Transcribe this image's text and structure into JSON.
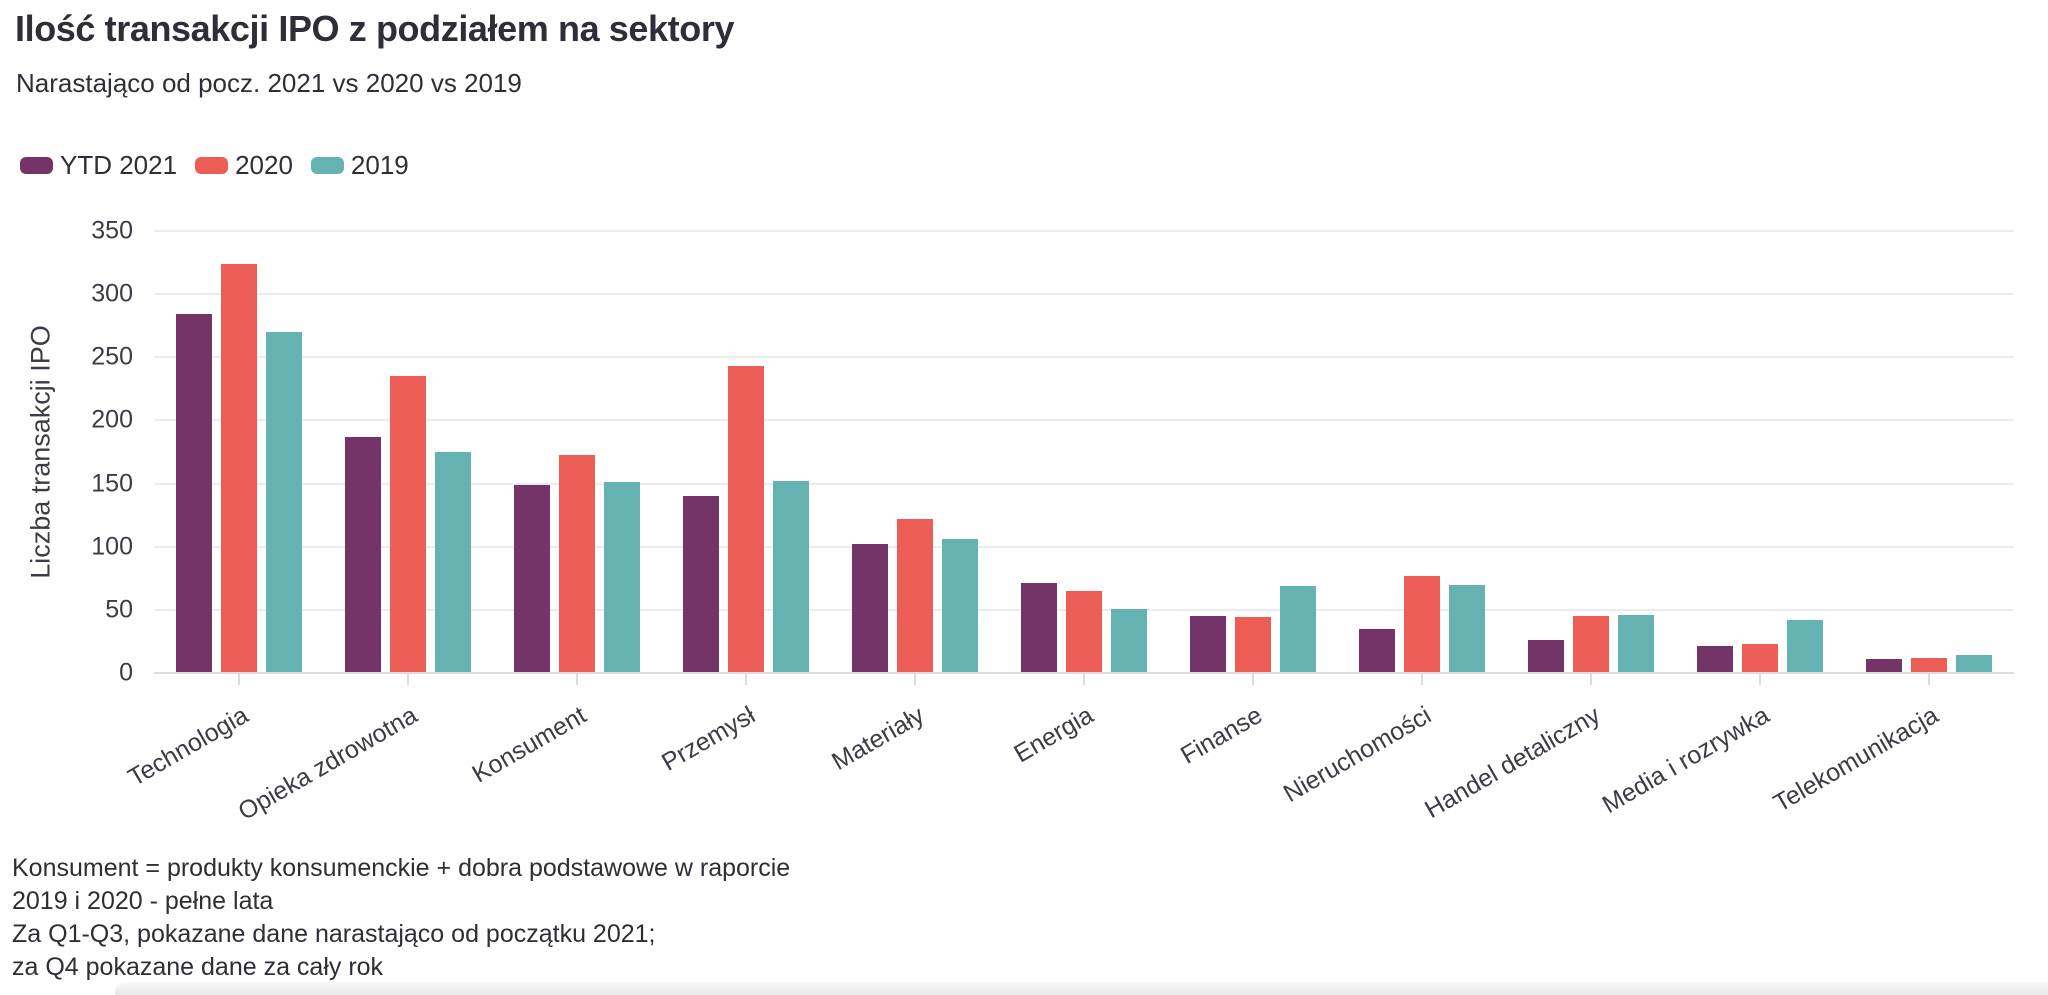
{
  "header": {
    "title": "Ilość transakcji IPO z podziałem na sektory",
    "subtitle": "Narastająco od pocz. 2021 vs 2020 vs 2019"
  },
  "chart_data": {
    "type": "bar",
    "title": "Ilość transakcji IPO z podziałem na sektory",
    "subtitle": "Narastająco od pocz. 2021 vs 2020 vs 2019",
    "xlabel": "",
    "ylabel": "Liczba transakcji IPO",
    "ylim": [
      0,
      350
    ],
    "ytick_step": 50,
    "grid": true,
    "legend_position": "top-left",
    "categories": [
      "Technologia",
      "Opieka zdrowotna",
      "Konsument",
      "Przemysł",
      "Materiały",
      "Energia",
      "Finanse",
      "Nieruchomości",
      "Handel detaliczny",
      "Media i rozrywka",
      "Telekomunikacja"
    ],
    "series": [
      {
        "name": "YTD 2021",
        "color": "#743467",
        "values": [
          284,
          187,
          149,
          140,
          102,
          71,
          45,
          35,
          26,
          21,
          11
        ]
      },
      {
        "name": "2020",
        "color": "#EB5D55",
        "values": [
          324,
          235,
          173,
          243,
          122,
          65,
          44,
          77,
          45,
          23,
          12
        ]
      },
      {
        "name": "2019",
        "color": "#65B2B2",
        "values": [
          270,
          175,
          151,
          152,
          106,
          51,
          69,
          70,
          46,
          42,
          14
        ]
      }
    ]
  },
  "footnotes": [
    "Konsument = produkty konsumenckie + dobra podstawowe w raporcie",
    "2019 i 2020 - pełne lata",
    "Za Q1-Q3, pokazane dane narastająco od początku 2021;",
    "za Q4 pokazane dane za cały rok"
  ],
  "colors": {
    "title_text": "#2E2E38",
    "axis_text": "#3C3C48",
    "gridline": "#ECECEE",
    "axis_line": "#DCDCDF",
    "series_purple": "#743467",
    "series_red": "#EB5D55",
    "series_teal": "#65B2B2"
  }
}
